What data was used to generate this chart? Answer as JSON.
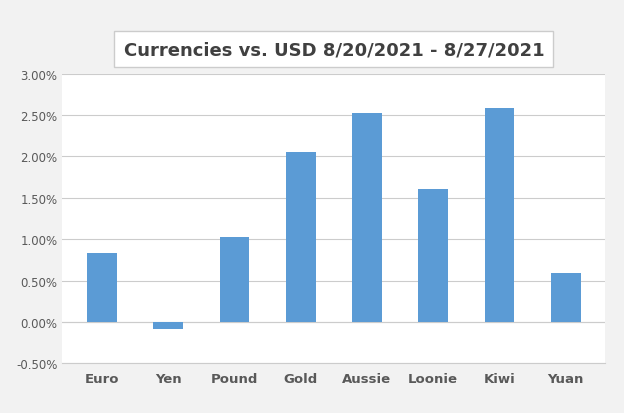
{
  "categories": [
    "Euro",
    "Yen",
    "Pound",
    "Gold",
    "Aussie",
    "Loonie",
    "Kiwi",
    "Yuan"
  ],
  "values": [
    0.0083,
    -0.0008,
    0.0103,
    0.0205,
    0.0252,
    0.016,
    0.0258,
    0.0059
  ],
  "bar_color": "#5B9BD5",
  "title": "Currencies vs. USD 8/20/2021 - 8/27/2021",
  "title_fontsize": 13,
  "ylim": [
    -0.005,
    0.03
  ],
  "yticks": [
    -0.005,
    0.0,
    0.005,
    0.01,
    0.015,
    0.02,
    0.025,
    0.03
  ],
  "ytick_labels": [
    "-0.50%",
    "0.00%",
    "0.50%",
    "1.00%",
    "1.50%",
    "2.00%",
    "2.50%",
    "3.00%"
  ],
  "background_color": "#F2F2F2",
  "plot_bg_color": "#FFFFFF",
  "grid_color": "#CCCCCC",
  "tick_label_fontsize": 8.5,
  "xlabel_fontsize": 9.5,
  "bar_width": 0.45
}
